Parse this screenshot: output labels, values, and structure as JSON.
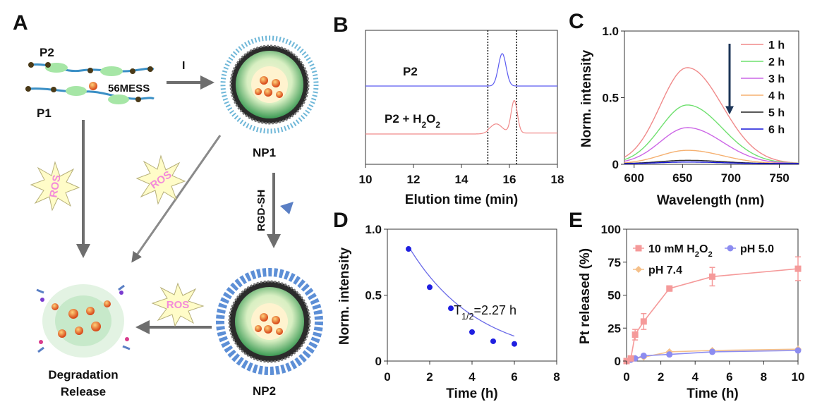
{
  "panels": {
    "A": {
      "letter": "A",
      "p2": "P2",
      "p1": "P1",
      "drug": "56MESS",
      "step": "I",
      "np1": "NP1",
      "rgd": "RGD-SH",
      "np2": "NP2",
      "ros": "ROS",
      "degradation": "Degradation",
      "release": "Release"
    },
    "B": {
      "letter": "B"
    },
    "C": {
      "letter": "C"
    },
    "D": {
      "letter": "D"
    },
    "E": {
      "letter": "E"
    }
  },
  "colors": {
    "blue_trace": "#5b5bf0",
    "red_trace": "#f08a8a",
    "arrow_gray": "#6e6e6e",
    "ros_star": "#fffcc8",
    "ros_text": "#f38bd9",
    "decay_points": "#1f1fe0",
    "arrow_dark": "#1c3557"
  },
  "chart_data": [
    {
      "id": "B",
      "type": "line",
      "xlabel": "Elution time (min)",
      "ylabel": "",
      "xlim": [
        10,
        18
      ],
      "xticks": [
        10,
        12,
        14,
        16,
        18
      ],
      "dashed_lines_x": [
        15.1,
        16.3
      ],
      "series": [
        {
          "name": "P2",
          "label_parts": [
            "P2"
          ],
          "color": "#5b5bf0",
          "peaks": [
            {
              "center": 15.7,
              "width": 0.16,
              "height": 1.0
            }
          ]
        },
        {
          "name": "P2 + H2O2",
          "label_parts": [
            "P2 + H",
            "2",
            "O",
            "2"
          ],
          "color": "#f08a8a",
          "peaks": [
            {
              "center": 15.45,
              "width": 0.25,
              "height": 0.28
            },
            {
              "center": 16.2,
              "width": 0.13,
              "height": 1.0
            }
          ]
        }
      ]
    },
    {
      "id": "C",
      "type": "line",
      "xlabel": "Wavelength (nm)",
      "ylabel": "Norm. intensity",
      "xlim": [
        590,
        770
      ],
      "ylim": [
        0,
        1.0
      ],
      "xticks": [
        600,
        650,
        700,
        750
      ],
      "yticks": [
        0,
        0.5,
        1.0
      ],
      "ytick_labels": [
        "0",
        "0.5",
        "1.0"
      ],
      "peak_nm": 655,
      "series": [
        {
          "name": "1 h",
          "peak": 0.72,
          "color": "#f08a8a"
        },
        {
          "name": "2 h",
          "peak": 0.44,
          "color": "#6fe06f"
        },
        {
          "name": "3 h",
          "peak": 0.27,
          "color": "#cc66e6"
        },
        {
          "name": "4 h",
          "peak": 0.1,
          "color": "#f5b070"
        },
        {
          "name": "5 h",
          "peak": 0.025,
          "color": "#222222"
        },
        {
          "name": "6 h",
          "peak": 0.012,
          "color": "#1515d8"
        }
      ]
    },
    {
      "id": "D",
      "type": "scatter",
      "xlabel": "Time (h)",
      "ylabel": "Norm. intensity",
      "xlim": [
        0,
        8
      ],
      "ylim": [
        0,
        1.0
      ],
      "xticks": [
        0,
        2,
        4,
        6,
        8
      ],
      "yticks": [
        0,
        0.5,
        1.0
      ],
      "ytick_labels": [
        "0",
        "0.5",
        "1.0"
      ],
      "x": [
        1,
        2,
        3,
        4,
        5,
        6
      ],
      "y": [
        0.85,
        0.56,
        0.4,
        0.22,
        0.15,
        0.13
      ],
      "fit": {
        "a": 1.18,
        "k": 0.3053
      },
      "annotation": {
        "main": "T",
        "sub": "1/2",
        "rest": "=2.27 h"
      }
    },
    {
      "id": "E",
      "type": "line",
      "xlabel": "Time (h)",
      "ylabel": "Pt released (%)",
      "xlim": [
        0,
        10
      ],
      "ylim": [
        0,
        100
      ],
      "xticks": [
        0,
        2,
        4,
        6,
        8,
        10
      ],
      "yticks": [
        0,
        25,
        50,
        75,
        100
      ],
      "series": [
        {
          "name": "10 mM H2O2",
          "label_parts": [
            "10 mM H",
            "2",
            "O",
            "2"
          ],
          "color": "#f59a9a",
          "marker": "square",
          "x": [
            0,
            0.25,
            0.5,
            1,
            2.5,
            5,
            10
          ],
          "y": [
            0,
            2,
            20,
            30,
            55,
            64,
            70
          ],
          "err": [
            0,
            0,
            4,
            6,
            2,
            7,
            9
          ]
        },
        {
          "name": "pH 5.0",
          "label_parts": [
            "pH 5.0"
          ],
          "color": "#8c8cf0",
          "marker": "circle",
          "x": [
            0,
            0.25,
            0.5,
            1,
            2.5,
            5,
            10
          ],
          "y": [
            0,
            1,
            2,
            4,
            5,
            7,
            8
          ],
          "err": [
            0,
            0,
            0,
            0,
            0,
            0,
            0
          ]
        },
        {
          "name": "pH 7.4",
          "label_parts": [
            "pH 7.4"
          ],
          "color": "#f5c08a",
          "marker": "diamond",
          "x": [
            0,
            0.25,
            0.5,
            1,
            2.5,
            5,
            10
          ],
          "y": [
            0,
            1,
            2,
            3,
            7,
            8,
            9
          ],
          "err": [
            0,
            0,
            0,
            0,
            0,
            0,
            0
          ]
        }
      ]
    }
  ]
}
